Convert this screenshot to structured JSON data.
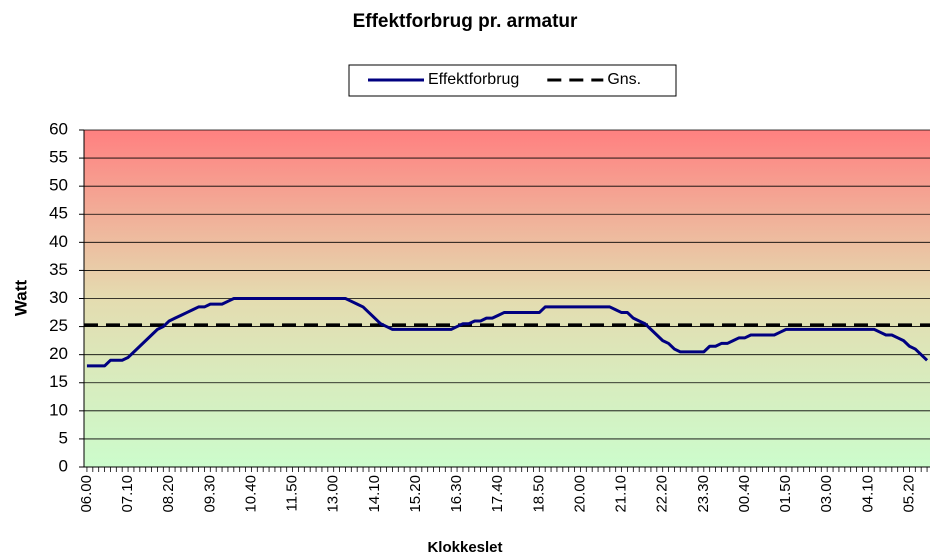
{
  "chart_data": {
    "type": "line",
    "title": "Effektforbrug pr. armatur",
    "xlabel": "Klokkeslet",
    "ylabel": "Watt",
    "categories": [
      "06.00",
      null,
      null,
      null,
      null,
      null,
      null,
      "07.10",
      null,
      null,
      null,
      null,
      null,
      null,
      "08.20",
      null,
      null,
      null,
      null,
      null,
      null,
      "09.30",
      null,
      null,
      null,
      null,
      null,
      null,
      "10.40",
      null,
      null,
      null,
      null,
      null,
      null,
      "11.50",
      null,
      null,
      null,
      null,
      null,
      null,
      "13.00",
      null,
      null,
      null,
      null,
      null,
      null,
      "14.10",
      null,
      null,
      null,
      null,
      null,
      null,
      "15.20",
      null,
      null,
      null,
      null,
      null,
      null,
      "16.30",
      null,
      null,
      null,
      null,
      null,
      null,
      "17.40",
      null,
      null,
      null,
      null,
      null,
      null,
      "18.50",
      null,
      null,
      null,
      null,
      null,
      null,
      "20.00",
      null,
      null,
      null,
      null,
      null,
      null,
      "21.10",
      null,
      null,
      null,
      null,
      null,
      null,
      "22.20",
      null,
      null,
      null,
      null,
      null,
      null,
      "23.30",
      null,
      null,
      null,
      null,
      null,
      null,
      "00.40",
      null,
      null,
      null,
      null,
      null,
      null,
      "01.50",
      null,
      null,
      null,
      null,
      null,
      null,
      "03.00",
      null,
      null,
      null,
      null,
      null,
      null,
      "04.10",
      null,
      null,
      null,
      null,
      null,
      null,
      "05.20",
      null,
      null,
      null
    ],
    "series": [
      {
        "name": "Effektforbrug",
        "color": "#000080",
        "values": [
          18,
          18,
          18,
          18,
          19,
          19,
          19,
          19.5,
          20.5,
          21.5,
          22.5,
          23.5,
          24.5,
          25,
          26,
          26.5,
          27,
          27.5,
          28,
          28.5,
          28.5,
          29,
          29,
          29,
          29.5,
          30,
          30,
          30,
          30,
          30,
          30,
          30,
          30,
          30,
          30,
          30,
          30,
          30,
          30,
          30,
          30,
          30,
          30,
          30,
          30,
          29.5,
          29,
          28.5,
          27.5,
          26.5,
          25.5,
          25,
          24.5,
          24.5,
          24.5,
          24.5,
          24.5,
          24.5,
          24.5,
          24.5,
          24.5,
          24.5,
          24.5,
          25,
          25.5,
          25.5,
          26,
          26,
          26.5,
          26.5,
          27,
          27.5,
          27.5,
          27.5,
          27.5,
          27.5,
          27.5,
          27.5,
          28.5,
          28.5,
          28.5,
          28.5,
          28.5,
          28.5,
          28.5,
          28.5,
          28.5,
          28.5,
          28.5,
          28.5,
          28,
          27.5,
          27.5,
          26.5,
          26,
          25.5,
          24.5,
          23.5,
          22.5,
          22,
          21,
          20.5,
          20.5,
          20.5,
          20.5,
          20.5,
          21.5,
          21.5,
          22,
          22,
          22.5,
          23,
          23,
          23.5,
          23.5,
          23.5,
          23.5,
          23.5,
          24,
          24.5,
          24.5,
          24.5,
          24.5,
          24.5,
          24.5,
          24.5,
          24.5,
          24.5,
          24.5,
          24.5,
          24.5,
          24.5,
          24.5,
          24.5,
          24.5,
          24,
          23.5,
          23.5,
          23,
          22.5,
          21.5,
          21,
          20,
          19
        ]
      }
    ],
    "hlines": [
      {
        "name": "Gns.",
        "value": 25.3,
        "color": "#000000",
        "dashed": true
      }
    ],
    "ylim": [
      0,
      60
    ],
    "yticks": [
      0,
      5,
      10,
      15,
      20,
      25,
      30,
      35,
      40,
      45,
      50,
      55,
      60
    ],
    "grid": true,
    "legend": "top"
  }
}
